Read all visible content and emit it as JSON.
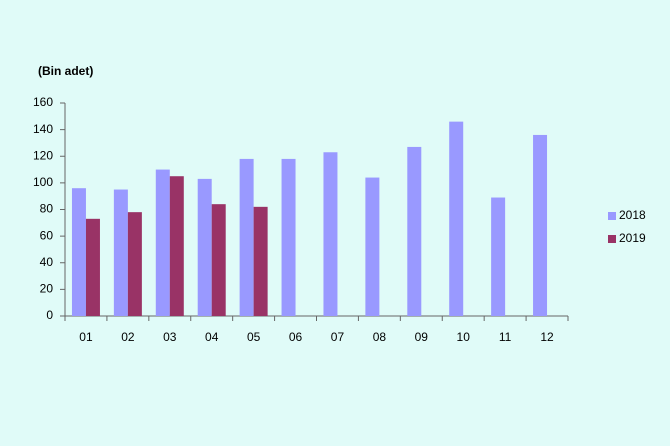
{
  "chart_data": {
    "type": "bar",
    "title": "(Bin adet)",
    "categories": [
      "01",
      "02",
      "03",
      "04",
      "05",
      "06",
      "07",
      "08",
      "09",
      "10",
      "11",
      "12"
    ],
    "series": [
      {
        "name": "2018",
        "color": "#9999ff",
        "values": [
          96,
          95,
          110,
          103,
          118,
          118,
          123,
          104,
          127,
          146,
          89,
          136
        ]
      },
      {
        "name": "2019",
        "color": "#993366",
        "values": [
          73,
          78,
          105,
          84,
          82,
          null,
          null,
          null,
          null,
          null,
          null,
          null
        ]
      }
    ],
    "ylim": [
      0,
      160
    ],
    "yticks": [
      0,
      20,
      40,
      60,
      80,
      100,
      120,
      140,
      160
    ],
    "grid": false,
    "legend": "right"
  }
}
